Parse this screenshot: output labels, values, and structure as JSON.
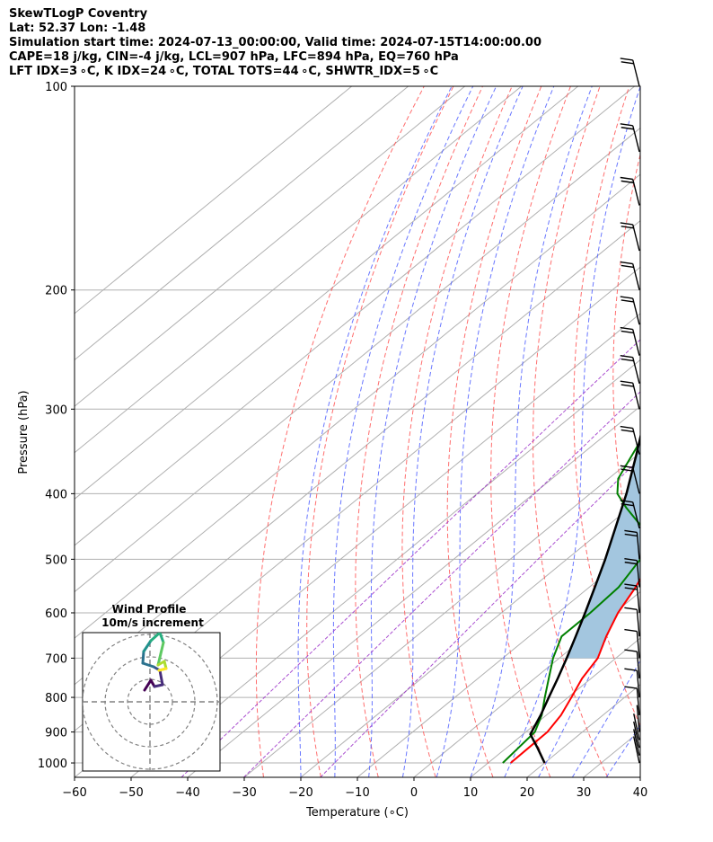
{
  "header": {
    "line1": "SkewTLogP Coventry",
    "line2": "Lat: 52.37   Lon: -1.48",
    "line3": "Simulation start time: 2024-07-13_00:00:00, Valid time: 2024-07-15T14:00:00.00",
    "line4": "CAPE=18 j/kg, CIN=-4 j/kg, LCL=907 hPa, LFC=894 hPa, EQ=760 hPa",
    "line5": "LFT IDX=3 ∘C, K IDX=24 ∘C, TOTAL TOTS=44 ∘C, SHWTR_IDX=5 ∘C"
  },
  "chart_data": {
    "type": "line",
    "subtype": "skew-t log-p sounding",
    "xlabel": "Temperature (∘C)",
    "ylabel": "Pressure (hPa)",
    "xlim": [
      -60,
      40
    ],
    "ylim": [
      1050,
      100
    ],
    "y_scale": "log",
    "x_ticks": [
      "−60",
      "−50",
      "−40",
      "−30",
      "−20",
      "−10",
      "0",
      "10",
      "20",
      "30",
      "40"
    ],
    "y_ticks": [
      "1000",
      "900",
      "800",
      "700",
      "600",
      "500",
      "400",
      "300",
      "200",
      "100"
    ],
    "grid": true,
    "background_lines": [
      "dry adiabats (red dashed)",
      "moist adiabats (blue dashed)",
      "mixing ratio (purple dashed)",
      "isotherms (gray)"
    ],
    "series": [
      {
        "role": "temperature",
        "color": "#ff0000",
        "points": [
          [
            1000,
            14.0
          ],
          [
            950,
            13.9
          ],
          [
            900,
            13.8
          ],
          [
            850,
            12.6
          ],
          [
            800,
            10.6
          ],
          [
            750,
            8.4
          ],
          [
            700,
            6.8
          ],
          [
            650,
            3.6
          ],
          [
            600,
            0.6
          ],
          [
            550,
            -1.8
          ],
          [
            500,
            -5.0
          ],
          [
            475,
            -6.6
          ],
          [
            450,
            -8.4
          ],
          [
            425,
            -10.9
          ],
          [
            400,
            -13.4
          ],
          [
            375,
            -16.6
          ],
          [
            350,
            -20.0
          ],
          [
            325,
            -23.4
          ],
          [
            300,
            -27.6
          ],
          [
            280,
            -31.2
          ],
          [
            260,
            -35.0
          ],
          [
            240,
            -39.5
          ],
          [
            220,
            -43.0
          ],
          [
            200,
            -44.9
          ],
          [
            185,
            -47.5
          ],
          [
            170,
            -51.0
          ],
          [
            160,
            -53.8
          ],
          [
            150,
            -55.4
          ],
          [
            140,
            -57.0
          ],
          [
            130,
            -58.6
          ],
          [
            120,
            -60.2
          ],
          [
            110,
            -61.8
          ],
          [
            100,
            -63.4
          ]
        ]
      },
      {
        "role": "dewpoint",
        "color": "#008000",
        "points": [
          [
            1000,
            12.6
          ],
          [
            950,
            12.1
          ],
          [
            900,
            11.6
          ],
          [
            850,
            9.2
          ],
          [
            800,
            5.9
          ],
          [
            750,
            2.5
          ],
          [
            700,
            -1.1
          ],
          [
            650,
            -4.3
          ],
          [
            600,
            -4.3
          ],
          [
            550,
            -4.8
          ],
          [
            500,
            -7.0
          ],
          [
            450,
            -13.2
          ],
          [
            420,
            -20.5
          ],
          [
            400,
            -25.2
          ],
          [
            380,
            -28.3
          ],
          [
            350,
            -31.0
          ],
          [
            320,
            -33.9
          ],
          [
            300,
            -36.0
          ],
          [
            280,
            -39.4
          ],
          [
            260,
            -42.0
          ],
          [
            240,
            -45.7
          ],
          [
            230,
            -47.0
          ],
          [
            220,
            -49.0
          ],
          [
            210,
            -52.5
          ],
          [
            200,
            -57.2
          ],
          [
            185,
            -66.3
          ],
          [
            175,
            -69.5
          ],
          [
            160,
            -74.9
          ],
          [
            140,
            -83.5
          ],
          [
            120,
            -92.4
          ],
          [
            100,
            -100.5
          ]
        ]
      },
      {
        "role": "parcel",
        "color": "#000000",
        "points": [
          [
            1000,
            20.0
          ],
          [
            950,
            15.5
          ],
          [
            907,
            11.3
          ],
          [
            850,
            9.0
          ],
          [
            800,
            6.6
          ],
          [
            750,
            4.1
          ],
          [
            700,
            1.3
          ],
          [
            650,
            -1.8
          ],
          [
            600,
            -5.2
          ],
          [
            550,
            -9.0
          ],
          [
            500,
            -13.2
          ],
          [
            450,
            -18.1
          ],
          [
            400,
            -23.6
          ],
          [
            350,
            -30.3
          ],
          [
            300,
            -38.2
          ],
          [
            250,
            -47.8
          ],
          [
            200,
            -59.5
          ],
          [
            150,
            -73.5
          ],
          [
            100,
            -91.0
          ]
        ]
      }
    ],
    "cape_fill_color": "#a3c6df",
    "wind_barbs": {
      "count": 25,
      "pressures": [
        1000,
        975,
        950,
        925,
        900,
        850,
        800,
        750,
        700,
        650,
        600,
        550,
        500,
        450,
        400,
        350,
        300,
        275,
        250,
        225,
        200,
        175,
        150,
        125,
        100
      ]
    },
    "inset": {
      "title": "Wind Profile",
      "subtitle": "10m/s increment",
      "rings_ms": [
        10,
        20,
        30
      ],
      "colormap": "viridis"
    }
  }
}
